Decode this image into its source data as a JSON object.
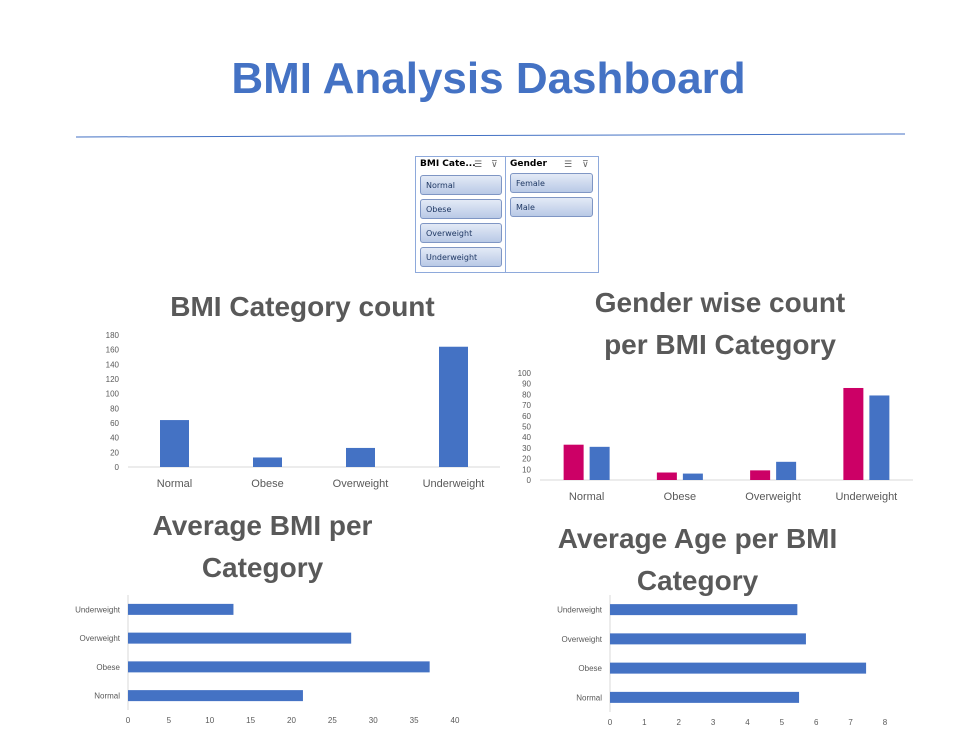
{
  "page": {
    "title": "BMI Analysis Dashboard"
  },
  "slicers": [
    {
      "header": "BMI Cate...",
      "items": [
        "Normal",
        "Obese",
        "Overweight",
        "Underweight"
      ]
    },
    {
      "header": "Gender",
      "items": [
        "Female",
        "Male"
      ]
    }
  ],
  "headings": {
    "bmi_count": "BMI Category count",
    "gender_count_line1": "Gender wise count",
    "gender_count_line2": "per BMI Category",
    "avg_bmi_line1": "Average BMI per",
    "avg_bmi_line2": "Category",
    "avg_age_line1": "Average Age per BMI",
    "avg_age_line2": "Category"
  },
  "colors": {
    "blue": "#4472C4",
    "magenta": "#CC0066",
    "title": "#4472C4",
    "heading": "#595959"
  },
  "chart_data": [
    {
      "type": "bar",
      "title": "BMI Category count",
      "categories": [
        "Normal",
        "Obese",
        "Overweight",
        "Underweight"
      ],
      "values": [
        64,
        13,
        26,
        164
      ],
      "ylim": [
        0,
        180
      ],
      "yticks": [
        0,
        20,
        40,
        60,
        80,
        100,
        120,
        140,
        160,
        180
      ],
      "color": "#4472C4",
      "grid": false
    },
    {
      "type": "bar",
      "title": "Gender wise count per BMI Category",
      "categories": [
        "Normal",
        "Obese",
        "Overweight",
        "Underweight"
      ],
      "series": [
        {
          "values": [
            33,
            7,
            9,
            86
          ],
          "color": "#CC0066"
        },
        {
          "values": [
            31,
            6,
            17,
            79
          ],
          "color": "#4472C4"
        }
      ],
      "ylim": [
        0,
        100
      ],
      "yticks": [
        0,
        10,
        20,
        30,
        40,
        50,
        60,
        70,
        80,
        90,
        100
      ],
      "grid": false
    },
    {
      "type": "bar",
      "orientation": "horizontal",
      "title": "Average BMI per Category",
      "categories": [
        "Underweight",
        "Overweight",
        "Obese",
        "Normal"
      ],
      "values": [
        12.9,
        27.3,
        36.9,
        21.4
      ],
      "xlim": [
        0,
        40
      ],
      "xticks": [
        0,
        5,
        10,
        15,
        20,
        25,
        30,
        35,
        40
      ],
      "color": "#4472C4",
      "grid": false
    },
    {
      "type": "bar",
      "orientation": "horizontal",
      "title": "Average Age per BMI Category",
      "categories": [
        "Underweight",
        "Overweight",
        "Obese",
        "Normal"
      ],
      "values": [
        5.45,
        5.7,
        7.45,
        5.5
      ],
      "xlim": [
        0,
        8
      ],
      "xticks": [
        0,
        1,
        2,
        3,
        4,
        5,
        6,
        7,
        8
      ],
      "color": "#4472C4",
      "grid": false
    }
  ]
}
